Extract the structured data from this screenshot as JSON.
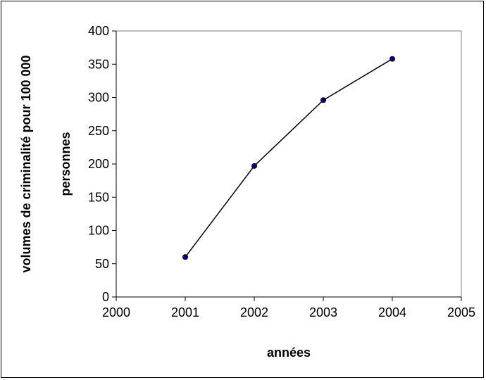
{
  "chart_data": {
    "type": "line",
    "title": "",
    "xlabel": "années",
    "ylabel_lines": [
      "volumes de criminalité pour 100 000",
      "personnes"
    ],
    "xlim": [
      2000,
      2005
    ],
    "ylim": [
      0,
      400
    ],
    "x_ticks": [
      2000,
      2001,
      2002,
      2003,
      2004,
      2005
    ],
    "y_ticks": [
      0,
      50,
      100,
      150,
      200,
      250,
      300,
      350,
      400
    ],
    "grid": false,
    "legend": "none",
    "series": [
      {
        "x": [
          2001,
          2002,
          2003,
          2004
        ],
        "y": [
          60,
          197,
          296,
          358
        ],
        "line_color": "#000000",
        "marker_color": "#000080"
      }
    ]
  }
}
